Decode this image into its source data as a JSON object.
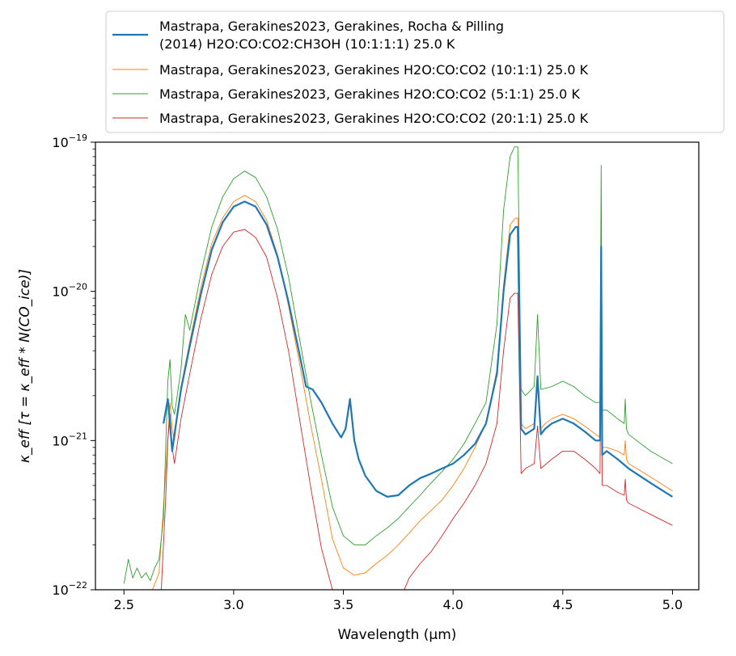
{
  "chart_data": {
    "type": "line",
    "xlabel": "Wavelength (μm)",
    "ylabel": "κ_eff [τ = κ_eff * N(CO_ice)]",
    "xlim": [
      2.37,
      5.12
    ],
    "ylim": [
      1e-22,
      1e-19
    ],
    "yscale": "log",
    "x_ticks": [
      "2.5",
      "3.0",
      "3.5",
      "4.0",
      "4.5",
      "5.0"
    ],
    "y_ticks": [
      {
        "base": "10",
        "exp": "−22",
        "value": 1e-22
      },
      {
        "base": "10",
        "exp": "−21",
        "value": 1e-21
      },
      {
        "base": "10",
        "exp": "−20",
        "value": 1e-20
      },
      {
        "base": "10",
        "exp": "−19",
        "value": 1e-19
      }
    ],
    "legend_position": "top",
    "series": [
      {
        "name": "Mastrapa, Gerakines2023, Gerakines, Rocha & Pilling (2014) H2O:CO:CO2:CH3OH (10:1:1:1) 25.0 K",
        "legend_lines": [
          "Mastrapa, Gerakines2023, Gerakines, Rocha & Pilling",
          "(2014) H2O:CO:CO2:CH3OH (10:1:1:1) 25.0 K"
        ],
        "color": "#1f77b4",
        "x": [
          2.68,
          2.7,
          2.71,
          2.72,
          2.73,
          2.76,
          2.8,
          2.85,
          2.9,
          2.95,
          3.0,
          3.05,
          3.1,
          3.15,
          3.2,
          3.25,
          3.3,
          3.33,
          3.36,
          3.4,
          3.45,
          3.49,
          3.51,
          3.53,
          3.55,
          3.57,
          3.6,
          3.65,
          3.7,
          3.75,
          3.8,
          3.85,
          3.9,
          3.95,
          4.0,
          4.05,
          4.1,
          4.15,
          4.2,
          4.23,
          4.26,
          4.285,
          4.295,
          4.31,
          4.33,
          4.37,
          4.385,
          4.4,
          4.42,
          4.45,
          4.5,
          4.55,
          4.6,
          4.65,
          4.67,
          4.675,
          4.68,
          4.7,
          4.75,
          4.8,
          4.9,
          5.0
        ],
        "y": [
          1.3e-21,
          1.9e-21,
          1.3e-21,
          8.5e-22,
          1.1e-21,
          2.2e-21,
          4.3e-21,
          9.5e-21,
          1.9e-20,
          2.9e-20,
          3.7e-20,
          4e-20,
          3.7e-20,
          2.8e-20,
          1.7e-20,
          8.5e-21,
          3.8e-21,
          2.3e-21,
          2.2e-21,
          1.8e-21,
          1.3e-21,
          1.05e-21,
          1.2e-21,
          1.9e-21,
          1e-21,
          7.5e-22,
          5.8e-22,
          4.6e-22,
          4.2e-22,
          4.3e-22,
          5e-22,
          5.6e-22,
          6e-22,
          6.5e-22,
          7e-22,
          8e-22,
          9.5e-22,
          1.3e-21,
          2.8e-21,
          1e-20,
          2.4e-20,
          2.7e-20,
          2.7e-20,
          1.2e-21,
          1.1e-21,
          1.2e-21,
          2.7e-21,
          1.1e-21,
          1.2e-21,
          1.3e-21,
          1.4e-21,
          1.3e-21,
          1.15e-21,
          1e-21,
          1e-21,
          2e-20,
          8e-22,
          8.5e-22,
          7.5e-22,
          6.5e-22,
          5.2e-22,
          4.2e-22
        ]
      },
      {
        "name": "Mastrapa, Gerakines2023, Gerakines H2O:CO:CO2 (10:1:1) 25.0 K",
        "legend_lines": [
          "Mastrapa, Gerakines2023, Gerakines H2O:CO:CO2 (10:1:1) 25.0 K"
        ],
        "color": "#ff7f0e",
        "x": [
          2.63,
          2.66,
          2.69,
          2.71,
          2.72,
          2.73,
          2.76,
          2.8,
          2.85,
          2.9,
          2.95,
          3.0,
          3.05,
          3.1,
          3.15,
          3.2,
          3.25,
          3.3,
          3.35,
          3.4,
          3.45,
          3.5,
          3.55,
          3.6,
          3.65,
          3.7,
          3.75,
          3.8,
          3.85,
          3.9,
          3.95,
          4.0,
          4.05,
          4.1,
          4.15,
          4.2,
          4.23,
          4.26,
          4.285,
          4.295,
          4.31,
          4.33,
          4.37,
          4.385,
          4.4,
          4.42,
          4.45,
          4.5,
          4.55,
          4.6,
          4.65,
          4.67,
          4.675,
          4.68,
          4.7,
          4.75,
          4.78,
          4.785,
          4.79,
          4.8,
          4.9,
          5.0
        ],
        "y": [
          1e-22,
          1.3e-22,
          6e-22,
          1.8e-21,
          1.2e-21,
          1e-21,
          2.3e-21,
          4.6e-21,
          1.05e-20,
          2.1e-20,
          3.1e-20,
          4e-20,
          4.4e-20,
          4e-20,
          3e-20,
          1.75e-20,
          8e-21,
          3.3e-21,
          1.3e-21,
          5.5e-22,
          2.2e-22,
          1.4e-22,
          1.25e-22,
          1.3e-22,
          1.5e-22,
          1.7e-22,
          2e-22,
          2.4e-22,
          2.9e-22,
          3.4e-22,
          4e-22,
          5e-22,
          6.5e-22,
          9e-22,
          1.3e-21,
          3e-21,
          1.1e-20,
          2.8e-20,
          3.1e-20,
          3.1e-20,
          1.3e-21,
          1.2e-21,
          1.3e-21,
          2.5e-21,
          1.2e-21,
          1.3e-21,
          1.4e-21,
          1.5e-21,
          1.4e-21,
          1.25e-21,
          1.1e-21,
          1.05e-21,
          1.5e-20,
          9e-22,
          9e-22,
          8.5e-22,
          8e-22,
          1e-21,
          7.5e-22,
          7e-22,
          5.7e-22,
          4.6e-22
        ]
      },
      {
        "name": "Mastrapa, Gerakines2023, Gerakines H2O:CO:CO2 (5:1:1) 25.0 K",
        "legend_lines": [
          "Mastrapa, Gerakines2023, Gerakines H2O:CO:CO2 (5:1:1) 25.0 K"
        ],
        "color": "#2ca02c",
        "x": [
          2.5,
          2.52,
          2.54,
          2.56,
          2.58,
          2.6,
          2.62,
          2.64,
          2.66,
          2.68,
          2.7,
          2.71,
          2.72,
          2.73,
          2.76,
          2.78,
          2.8,
          2.85,
          2.9,
          2.95,
          3.0,
          3.05,
          3.1,
          3.15,
          3.2,
          3.25,
          3.3,
          3.35,
          3.4,
          3.45,
          3.5,
          3.55,
          3.6,
          3.65,
          3.7,
          3.75,
          3.8,
          3.85,
          3.9,
          3.95,
          4.0,
          4.05,
          4.1,
          4.15,
          4.2,
          4.23,
          4.26,
          4.28,
          4.295,
          4.31,
          4.33,
          4.37,
          4.385,
          4.4,
          4.45,
          4.5,
          4.55,
          4.6,
          4.65,
          4.67,
          4.675,
          4.68,
          4.7,
          4.75,
          4.78,
          4.785,
          4.79,
          4.8,
          4.9,
          5.0
        ],
        "y": [
          1.1e-22,
          1.6e-22,
          1.2e-22,
          1.4e-22,
          1.2e-22,
          1.3e-22,
          1.15e-22,
          1.4e-22,
          1.6e-22,
          3e-22,
          2.5e-21,
          3.5e-21,
          1.7e-21,
          1.5e-21,
          3e-21,
          7e-21,
          5.5e-21,
          1.3e-20,
          2.7e-20,
          4.3e-20,
          5.7e-20,
          6.4e-20,
          5.8e-20,
          4.3e-20,
          2.6e-20,
          1.25e-20,
          4.8e-21,
          1.9e-21,
          8e-22,
          3.6e-22,
          2.3e-22,
          2e-22,
          2e-22,
          2.3e-22,
          2.6e-22,
          3e-22,
          3.6e-22,
          4.3e-22,
          5.2e-22,
          6.2e-22,
          7.5e-22,
          9.5e-22,
          1.3e-21,
          1.8e-21,
          6e-21,
          3.5e-20,
          8e-20,
          9.3e-20,
          9.3e-20,
          2.2e-21,
          2e-21,
          2.3e-21,
          7e-21,
          2.2e-21,
          2.3e-21,
          2.5e-21,
          2.3e-21,
          2e-21,
          1.8e-21,
          1.8e-21,
          7e-20,
          1.6e-21,
          1.6e-21,
          1.4e-21,
          1.3e-21,
          1.9e-21,
          1.2e-21,
          1.1e-21,
          8.5e-22,
          7e-22
        ]
      },
      {
        "name": "Mastrapa, Gerakines2023, Gerakines H2O:CO:CO2 (20:1:1) 25.0 K",
        "legend_lines": [
          "Mastrapa, Gerakines2023, Gerakines H2O:CO:CO2 (20:1:1) 25.0 K"
        ],
        "color": "#d62728",
        "x": [
          2.67,
          2.69,
          2.7,
          2.71,
          2.72,
          2.73,
          2.76,
          2.8,
          2.85,
          2.9,
          2.95,
          3.0,
          3.05,
          3.1,
          3.15,
          3.2,
          3.25,
          3.3,
          3.35,
          3.4,
          3.45,
          3.48,
          3.75,
          3.8,
          3.85,
          3.9,
          3.95,
          4.0,
          4.05,
          4.1,
          4.15,
          4.2,
          4.23,
          4.26,
          4.28,
          4.295,
          4.31,
          4.33,
          4.37,
          4.385,
          4.4,
          4.45,
          4.5,
          4.55,
          4.6,
          4.65,
          4.67,
          4.675,
          4.68,
          4.7,
          4.75,
          4.78,
          4.785,
          4.79,
          4.8,
          4.9,
          5.0
        ],
        "y": [
          1e-22,
          4e-22,
          1e-21,
          1.5e-21,
          9e-22,
          7e-22,
          1.4e-21,
          2.8e-21,
          6.5e-21,
          1.3e-20,
          2e-20,
          2.5e-20,
          2.6e-20,
          2.3e-20,
          1.7e-20,
          9e-21,
          4e-21,
          1.4e-21,
          5e-22,
          1.9e-22,
          1e-22,
          8e-23,
          8e-23,
          1.2e-22,
          1.5e-22,
          1.8e-22,
          2.3e-22,
          3e-22,
          3.8e-22,
          5e-22,
          7e-22,
          1.3e-21,
          4e-21,
          9e-21,
          9.7e-21,
          9.7e-21,
          6e-22,
          6.5e-22,
          7e-22,
          1.25e-21,
          6.5e-22,
          7.5e-22,
          8.5e-22,
          8.5e-22,
          7.5e-22,
          6.5e-22,
          6e-22,
          1.5e-20,
          5e-22,
          5e-22,
          4.5e-22,
          4.3e-22,
          5.5e-22,
          4e-22,
          3.8e-22,
          3.2e-22,
          2.7e-22
        ]
      }
    ]
  }
}
